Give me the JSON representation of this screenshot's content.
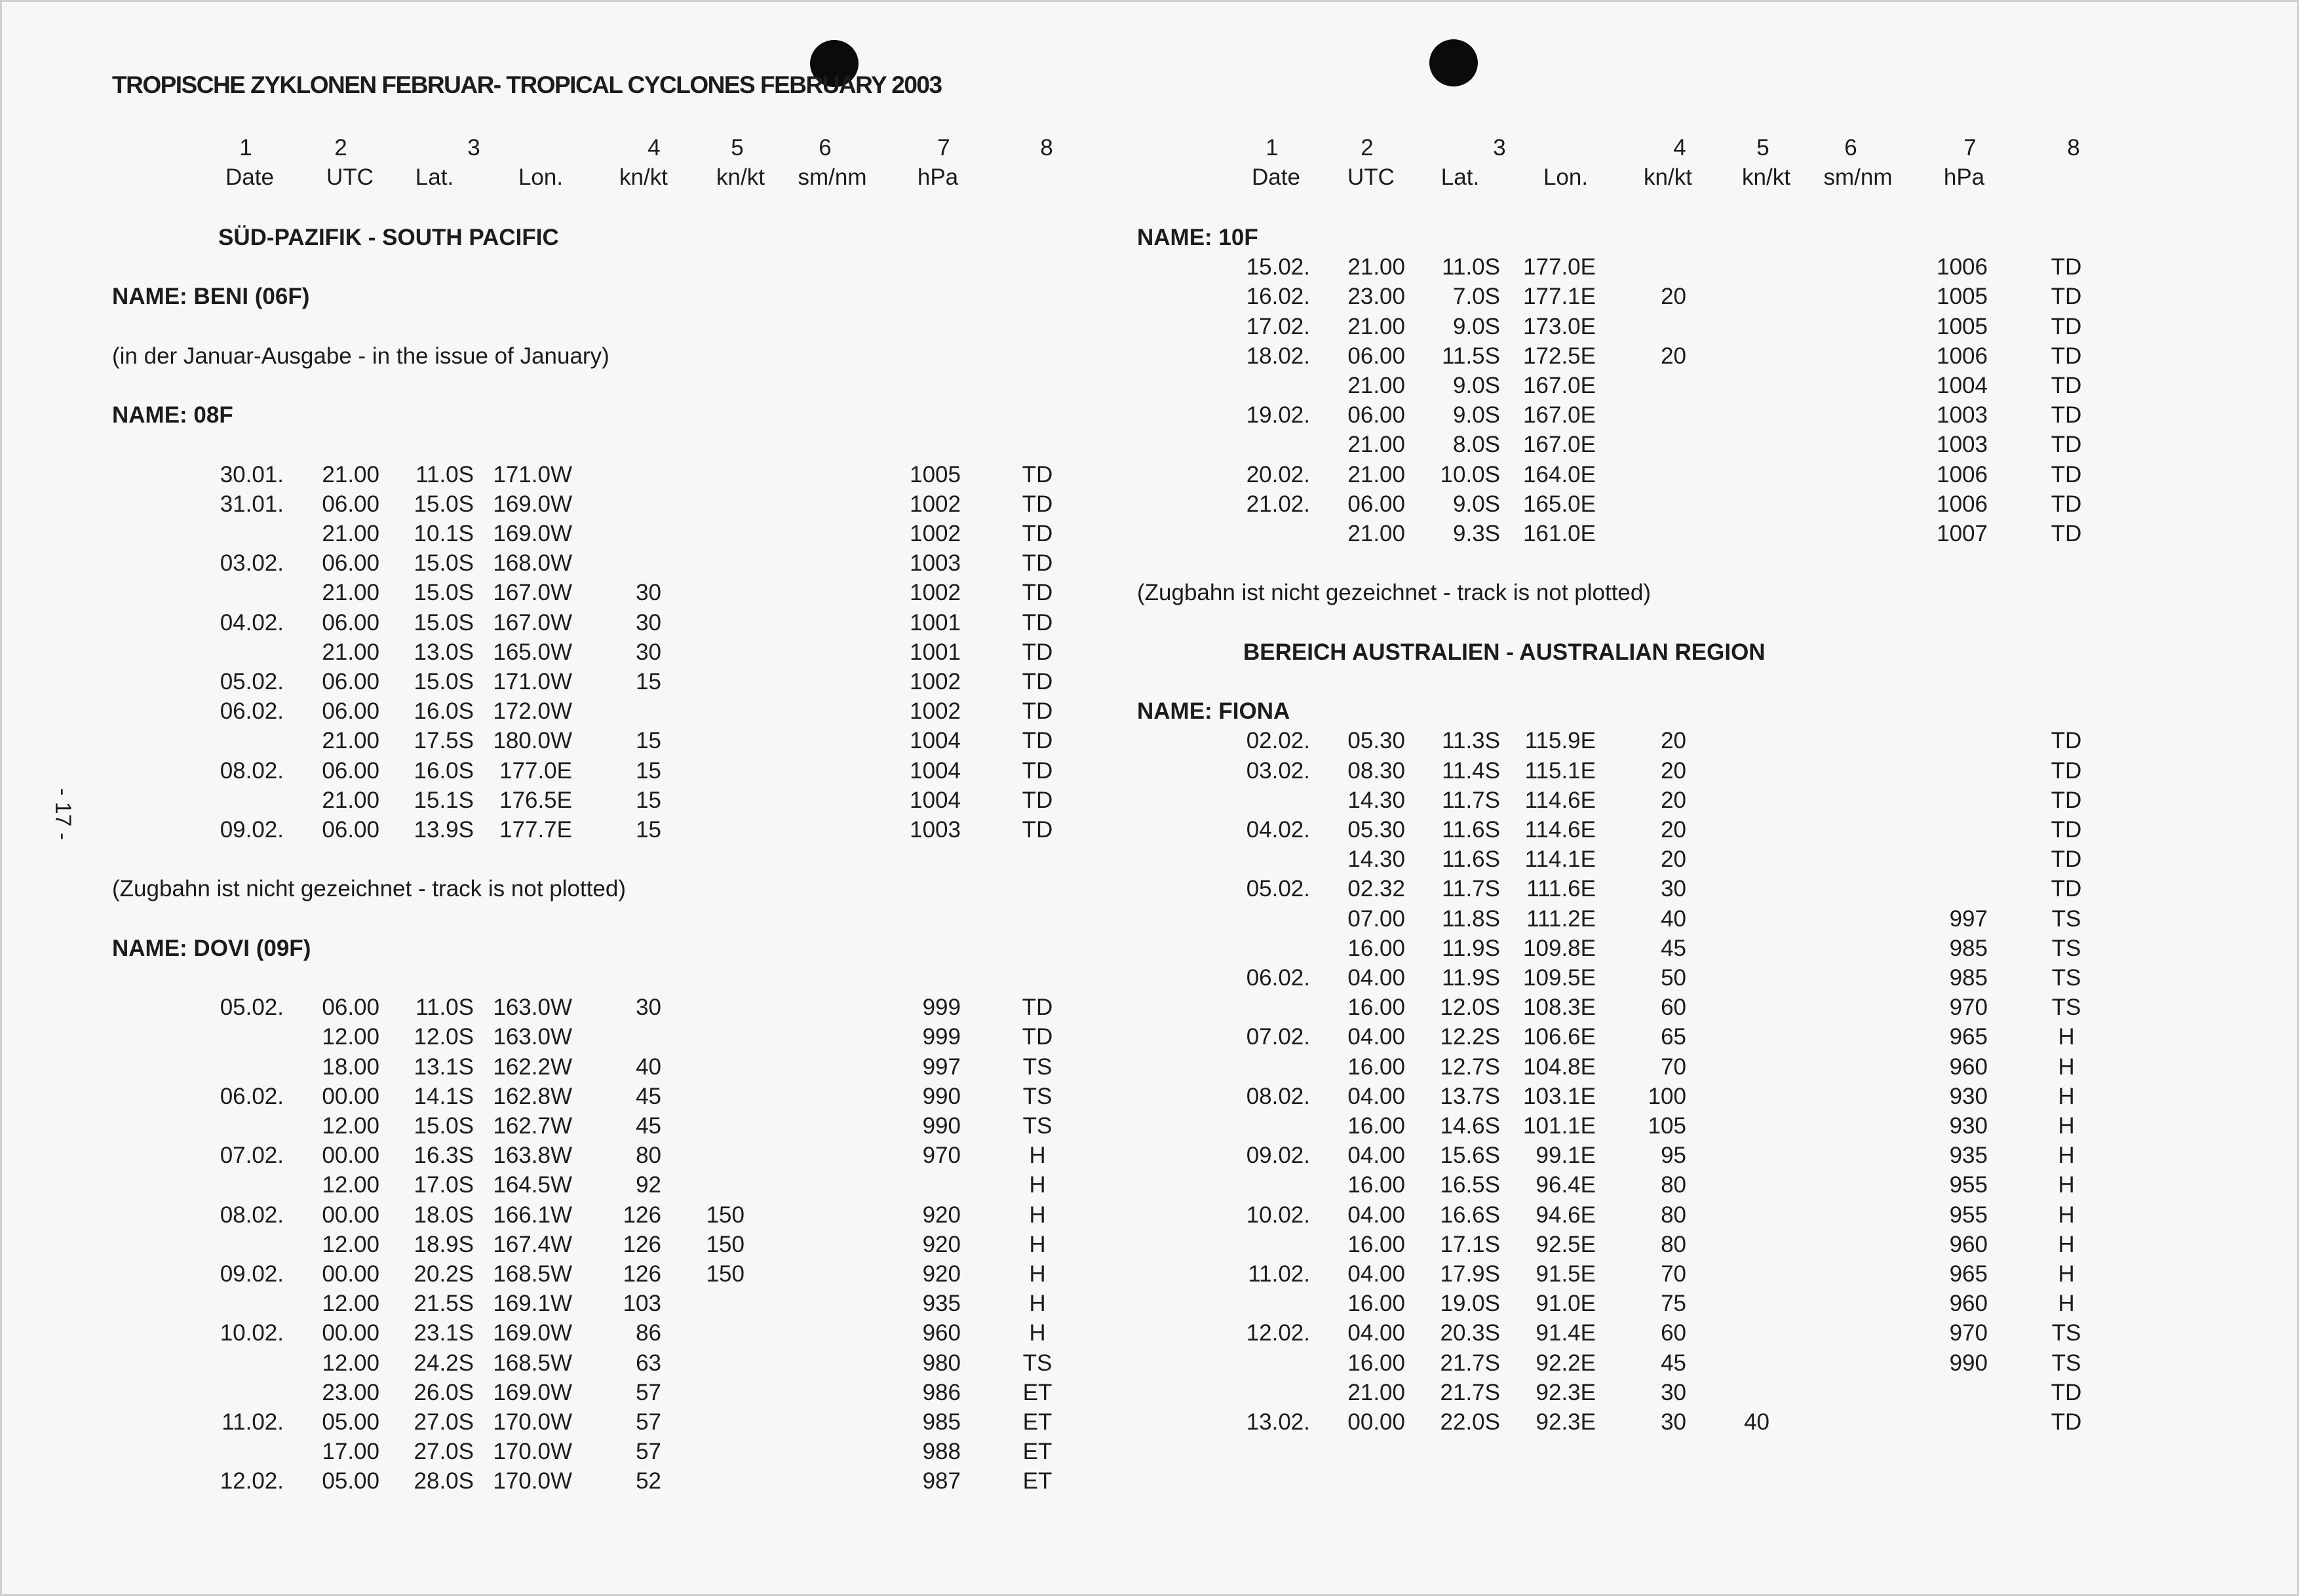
{
  "title": "TROPISCHE ZYKLONEN FEBRUAR- TROPICAL CYCLONES FEBRUARY 2003",
  "page_number": "- 17 -",
  "column_header": {
    "numbers": [
      "1",
      "2",
      "3",
      "4",
      "5",
      "6",
      "7",
      "8"
    ],
    "labels": [
      "Date",
      "UTC",
      "Lat.",
      "Lon.",
      "kn/kt",
      "kn/kt",
      "sm/nm",
      "hPa"
    ]
  },
  "left": {
    "blocks": [
      {
        "kind": "section",
        "text": "SÜD-PAZIFIK - SOUTH PACIFIC"
      },
      {
        "kind": "name",
        "text": "NAME: BENI (06F)"
      },
      {
        "kind": "note",
        "text": "(in der Januar-Ausgabe - in the issue of January)"
      },
      {
        "kind": "name",
        "text": "NAME: 08F"
      },
      {
        "kind": "rows",
        "rows": [
          [
            "30.01.",
            "21.00",
            "11.0S",
            "171.0W",
            "",
            "",
            "",
            "1005",
            "TD"
          ],
          [
            "31.01.",
            "06.00",
            "15.0S",
            "169.0W",
            "",
            "",
            "",
            "1002",
            "TD"
          ],
          [
            "",
            "21.00",
            "10.1S",
            "169.0W",
            "",
            "",
            "",
            "1002",
            "TD"
          ],
          [
            "03.02.",
            "06.00",
            "15.0S",
            "168.0W",
            "",
            "",
            "",
            "1003",
            "TD"
          ],
          [
            "",
            "21.00",
            "15.0S",
            "167.0W",
            "30",
            "",
            "",
            "1002",
            "TD"
          ],
          [
            "04.02.",
            "06.00",
            "15.0S",
            "167.0W",
            "30",
            "",
            "",
            "1001",
            "TD"
          ],
          [
            "",
            "21.00",
            "13.0S",
            "165.0W",
            "30",
            "",
            "",
            "1001",
            "TD"
          ],
          [
            "05.02.",
            "06.00",
            "15.0S",
            "171.0W",
            "15",
            "",
            "",
            "1002",
            "TD"
          ],
          [
            "06.02.",
            "06.00",
            "16.0S",
            "172.0W",
            "",
            "",
            "",
            "1002",
            "TD"
          ],
          [
            "",
            "21.00",
            "17.5S",
            "180.0W",
            "15",
            "",
            "",
            "1004",
            "TD"
          ],
          [
            "08.02.",
            "06.00",
            "16.0S",
            "177.0E",
            "15",
            "",
            "",
            "1004",
            "TD"
          ],
          [
            "",
            "21.00",
            "15.1S",
            "176.5E",
            "15",
            "",
            "",
            "1004",
            "TD"
          ],
          [
            "09.02.",
            "06.00",
            "13.9S",
            "177.7E",
            "15",
            "",
            "",
            "1003",
            "TD"
          ]
        ]
      },
      {
        "kind": "note",
        "text": "(Zugbahn ist nicht gezeichnet - track is not plotted)"
      },
      {
        "kind": "name",
        "text": "NAME: DOVI (09F)"
      },
      {
        "kind": "rows",
        "rows": [
          [
            "05.02.",
            "06.00",
            "11.0S",
            "163.0W",
            "30",
            "",
            "",
            "999",
            "TD"
          ],
          [
            "",
            "12.00",
            "12.0S",
            "163.0W",
            "",
            "",
            "",
            "999",
            "TD"
          ],
          [
            "",
            "18.00",
            "13.1S",
            "162.2W",
            "40",
            "",
            "",
            "997",
            "TS"
          ],
          [
            "06.02.",
            "00.00",
            "14.1S",
            "162.8W",
            "45",
            "",
            "",
            "990",
            "TS"
          ],
          [
            "",
            "12.00",
            "15.0S",
            "162.7W",
            "45",
            "",
            "",
            "990",
            "TS"
          ],
          [
            "07.02.",
            "00.00",
            "16.3S",
            "163.8W",
            "80",
            "",
            "",
            "970",
            "H"
          ],
          [
            "",
            "12.00",
            "17.0S",
            "164.5W",
            "92",
            "",
            "",
            "",
            "H"
          ],
          [
            "08.02.",
            "00.00",
            "18.0S",
            "166.1W",
            "126",
            "150",
            "",
            "920",
            "H"
          ],
          [
            "",
            "12.00",
            "18.9S",
            "167.4W",
            "126",
            "150",
            "",
            "920",
            "H"
          ],
          [
            "09.02.",
            "00.00",
            "20.2S",
            "168.5W",
            "126",
            "150",
            "",
            "920",
            "H"
          ],
          [
            "",
            "12.00",
            "21.5S",
            "169.1W",
            "103",
            "",
            "",
            "935",
            "H"
          ],
          [
            "10.02.",
            "00.00",
            "23.1S",
            "169.0W",
            "86",
            "",
            "",
            "960",
            "H"
          ],
          [
            "",
            "12.00",
            "24.2S",
            "168.5W",
            "63",
            "",
            "",
            "980",
            "TS"
          ],
          [
            "",
            "23.00",
            "26.0S",
            "169.0W",
            "57",
            "",
            "",
            "986",
            "ET"
          ],
          [
            "11.02.",
            "05.00",
            "27.0S",
            "170.0W",
            "57",
            "",
            "",
            "985",
            "ET"
          ],
          [
            "",
            "17.00",
            "27.0S",
            "170.0W",
            "57",
            "",
            "",
            "988",
            "ET"
          ],
          [
            "12.02.",
            "05.00",
            "28.0S",
            "170.0W",
            "52",
            "",
            "",
            "987",
            "ET"
          ]
        ]
      }
    ]
  },
  "right": {
    "blocks": [
      {
        "kind": "name",
        "text": "NAME: 10F"
      },
      {
        "kind": "rows",
        "rows": [
          [
            "15.02.",
            "21.00",
            "11.0S",
            "177.0E",
            "",
            "",
            "",
            "1006",
            "TD"
          ],
          [
            "16.02.",
            "23.00",
            "7.0S",
            "177.1E",
            "20",
            "",
            "",
            "1005",
            "TD"
          ],
          [
            "17.02.",
            "21.00",
            "9.0S",
            "173.0E",
            "",
            "",
            "",
            "1005",
            "TD"
          ],
          [
            "18.02.",
            "06.00",
            "11.5S",
            "172.5E",
            "20",
            "",
            "",
            "1006",
            "TD"
          ],
          [
            "",
            "21.00",
            "9.0S",
            "167.0E",
            "",
            "",
            "",
            "1004",
            "TD"
          ],
          [
            "19.02.",
            "06.00",
            "9.0S",
            "167.0E",
            "",
            "",
            "",
            "1003",
            "TD"
          ],
          [
            "",
            "21.00",
            "8.0S",
            "167.0E",
            "",
            "",
            "",
            "1003",
            "TD"
          ],
          [
            "20.02.",
            "21.00",
            "10.0S",
            "164.0E",
            "",
            "",
            "",
            "1006",
            "TD"
          ],
          [
            "21.02.",
            "06.00",
            "9.0S",
            "165.0E",
            "",
            "",
            "",
            "1006",
            "TD"
          ],
          [
            "",
            "21.00",
            "9.3S",
            "161.0E",
            "",
            "",
            "",
            "1007",
            "TD"
          ]
        ]
      },
      {
        "kind": "note",
        "text": "(Zugbahn ist nicht gezeichnet - track is not plotted)"
      },
      {
        "kind": "section",
        "text": "BEREICH AUSTRALIEN -  AUSTRALIAN REGION"
      },
      {
        "kind": "name",
        "text": "NAME: FIONA"
      },
      {
        "kind": "rows",
        "rows": [
          [
            "02.02.",
            "05.30",
            "11.3S",
            "115.9E",
            "20",
            "",
            "",
            "",
            "TD"
          ],
          [
            "03.02.",
            "08.30",
            "11.4S",
            "115.1E",
            "20",
            "",
            "",
            "",
            "TD"
          ],
          [
            "",
            "14.30",
            "11.7S",
            "114.6E",
            "20",
            "",
            "",
            "",
            "TD"
          ],
          [
            "04.02.",
            "05.30",
            "11.6S",
            "114.6E",
            "20",
            "",
            "",
            "",
            "TD"
          ],
          [
            "",
            "14.30",
            "11.6S",
            "114.1E",
            "20",
            "",
            "",
            "",
            "TD"
          ],
          [
            "05.02.",
            "02.32",
            "11.7S",
            "111.6E",
            "30",
            "",
            "",
            "",
            "TD"
          ],
          [
            "",
            "07.00",
            "11.8S",
            "111.2E",
            "40",
            "",
            "",
            "997",
            "TS"
          ],
          [
            "",
            "16.00",
            "11.9S",
            "109.8E",
            "45",
            "",
            "",
            "985",
            "TS"
          ],
          [
            "06.02.",
            "04.00",
            "11.9S",
            "109.5E",
            "50",
            "",
            "",
            "985",
            "TS"
          ],
          [
            "",
            "16.00",
            "12.0S",
            "108.3E",
            "60",
            "",
            "",
            "970",
            "TS"
          ],
          [
            "07.02.",
            "04.00",
            "12.2S",
            "106.6E",
            "65",
            "",
            "",
            "965",
            "H"
          ],
          [
            "",
            "16.00",
            "12.7S",
            "104.8E",
            "70",
            "",
            "",
            "960",
            "H"
          ],
          [
            "08.02.",
            "04.00",
            "13.7S",
            "103.1E",
            "100",
            "",
            "",
            "930",
            "H"
          ],
          [
            "",
            "16.00",
            "14.6S",
            "101.1E",
            "105",
            "",
            "",
            "930",
            "H"
          ],
          [
            "09.02.",
            "04.00",
            "15.6S",
            "99.1E",
            "95",
            "",
            "",
            "935",
            "H"
          ],
          [
            "",
            "16.00",
            "16.5S",
            "96.4E",
            "80",
            "",
            "",
            "955",
            "H"
          ],
          [
            "10.02.",
            "04.00",
            "16.6S",
            "94.6E",
            "80",
            "",
            "",
            "955",
            "H"
          ],
          [
            "",
            "16.00",
            "17.1S",
            "92.5E",
            "80",
            "",
            "",
            "960",
            "H"
          ],
          [
            "11.02.",
            "04.00",
            "17.9S",
            "91.5E",
            "70",
            "",
            "",
            "965",
            "H"
          ],
          [
            "",
            "16.00",
            "19.0S",
            "91.0E",
            "75",
            "",
            "",
            "960",
            "H"
          ],
          [
            "12.02.",
            "04.00",
            "20.3S",
            "91.4E",
            "60",
            "",
            "",
            "970",
            "TS"
          ],
          [
            "",
            "16.00",
            "21.7S",
            "92.2E",
            "45",
            "",
            "",
            "990",
            "TS"
          ],
          [
            "",
            "21.00",
            "21.7S",
            "92.3E",
            "30",
            "",
            "",
            "",
            "TD"
          ],
          [
            "13.02.",
            "00.00",
            "22.0S",
            "92.3E",
            "30",
            "40",
            "",
            "",
            "TD"
          ]
        ]
      }
    ]
  }
}
